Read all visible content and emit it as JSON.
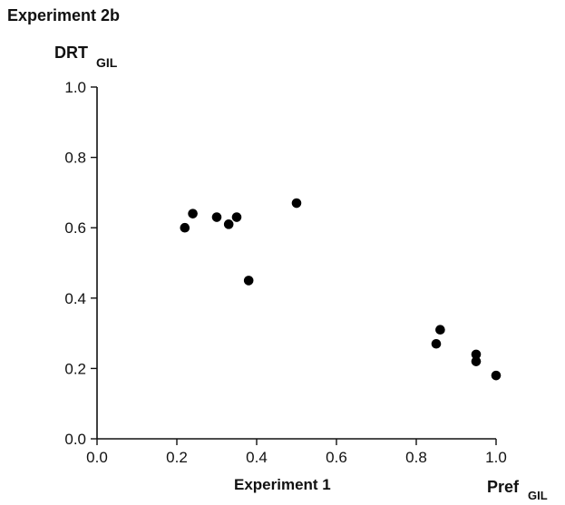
{
  "header": {
    "title": "Experiment 2b"
  },
  "chart_data": {
    "type": "scatter",
    "title": "Experiment 2b",
    "ylabel": {
      "main": "DRT",
      "sub": "GIL"
    },
    "xlabel": "Experiment 1",
    "xaxis_end_label": {
      "main": "Pref",
      "sub": "GIL"
    },
    "xlim": [
      0.0,
      1.0
    ],
    "ylim": [
      0.0,
      1.0
    ],
    "x_ticks": [
      "0.0",
      "0.2",
      "0.4",
      "0.6",
      "0.8",
      "1.0"
    ],
    "y_ticks": [
      "0.0",
      "0.2",
      "0.4",
      "0.6",
      "0.8",
      "1.0"
    ],
    "grid": false,
    "legend": "none",
    "marker_color": "#000000",
    "series": [
      {
        "points": [
          {
            "x": 0.22,
            "y": 0.6
          },
          {
            "x": 0.24,
            "y": 0.64
          },
          {
            "x": 0.3,
            "y": 0.63
          },
          {
            "x": 0.33,
            "y": 0.61
          },
          {
            "x": 0.35,
            "y": 0.63
          },
          {
            "x": 0.38,
            "y": 0.45
          },
          {
            "x": 0.5,
            "y": 0.67
          },
          {
            "x": 0.85,
            "y": 0.27
          },
          {
            "x": 0.86,
            "y": 0.31
          },
          {
            "x": 0.95,
            "y": 0.24
          },
          {
            "x": 0.95,
            "y": 0.22
          },
          {
            "x": 1.0,
            "y": 0.18
          }
        ]
      }
    ]
  }
}
